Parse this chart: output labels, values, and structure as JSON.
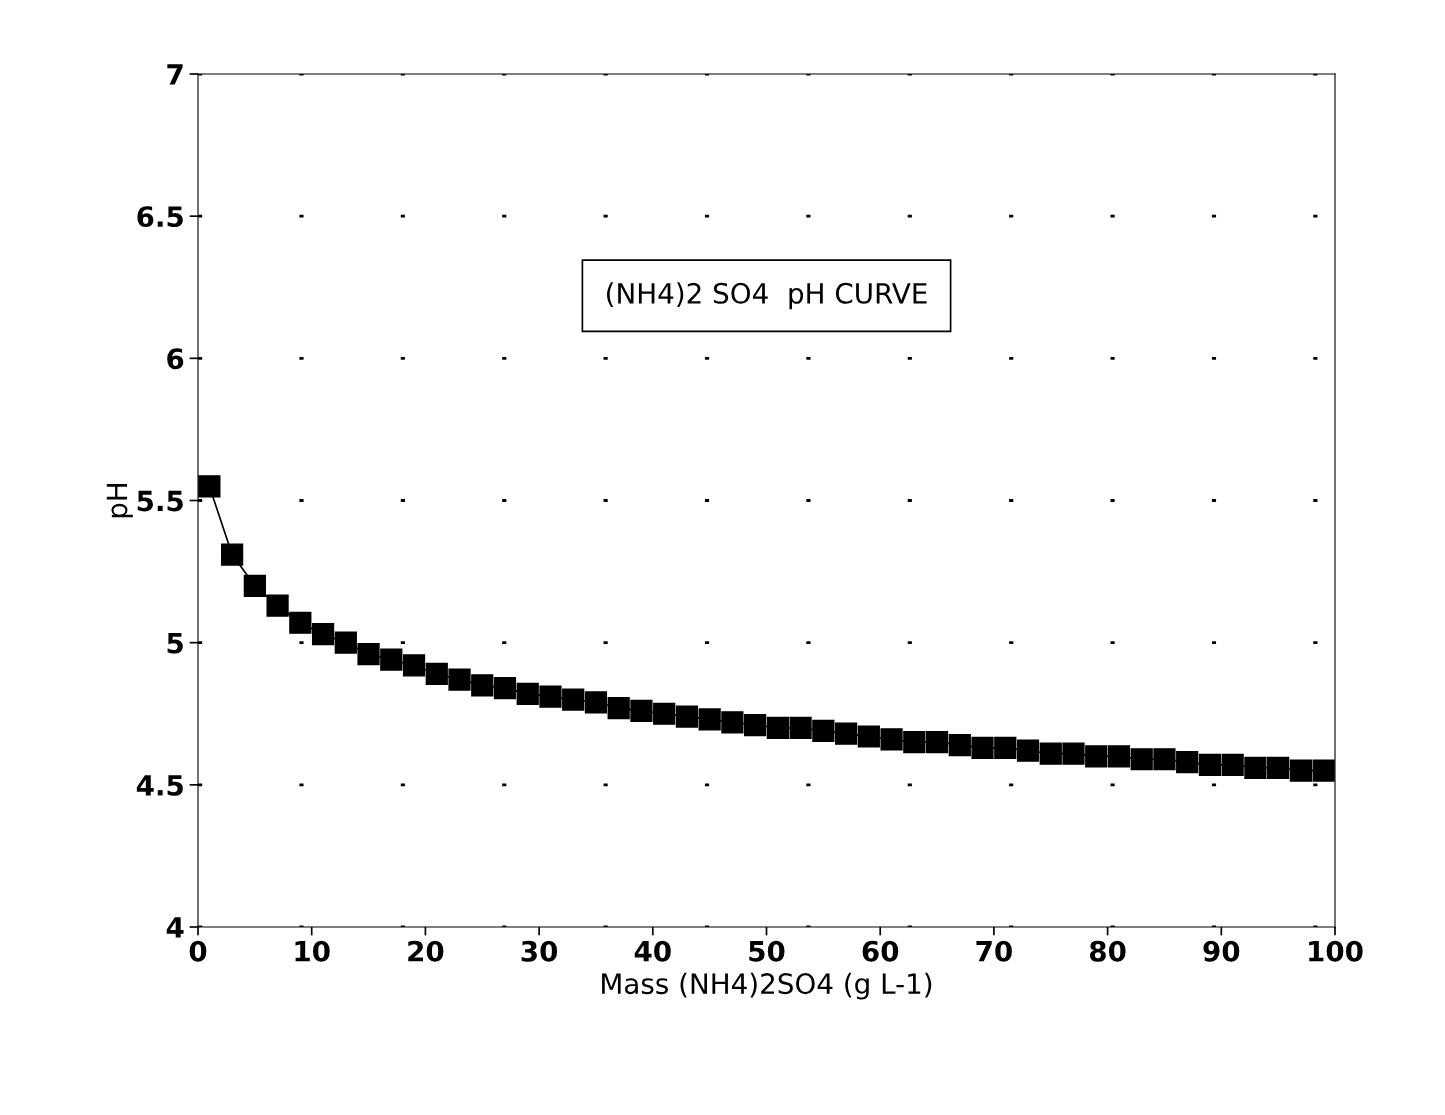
{
  "chart_data": {
    "type": "line",
    "title": "(NH4)2 SO4  pH CURVE",
    "xlabel": "Mass (NH4)2SO4 (g L-1)",
    "ylabel": "pH",
    "x": [
      1,
      3,
      5,
      7,
      9,
      11,
      13,
      15,
      17,
      19,
      21,
      23,
      25,
      27,
      29,
      31,
      33,
      35,
      37,
      39,
      41,
      43,
      45,
      47,
      49,
      51,
      53,
      55,
      57,
      59,
      61,
      63,
      65,
      67,
      69,
      71,
      73,
      75,
      77,
      79,
      81,
      83,
      85,
      87,
      89,
      91,
      93,
      95,
      97,
      99
    ],
    "series": [
      {
        "color": "#000000",
        "values": [
          5.55,
          5.31,
          5.2,
          5.13,
          5.07,
          5.03,
          5.0,
          4.96,
          4.94,
          4.92,
          4.89,
          4.87,
          4.85,
          4.84,
          4.82,
          4.81,
          4.8,
          4.79,
          4.77,
          4.76,
          4.75,
          4.74,
          4.73,
          4.72,
          4.71,
          4.7,
          4.7,
          4.69,
          4.68,
          4.67,
          4.66,
          4.65,
          4.65,
          4.64,
          4.63,
          4.63,
          4.62,
          4.61,
          4.61,
          4.6,
          4.6,
          4.59,
          4.59,
          4.58,
          4.57,
          4.57,
          4.56,
          4.56,
          4.55,
          4.55
        ]
      }
    ],
    "xlim": [
      0,
      100
    ],
    "xticks": [
      0,
      10,
      20,
      30,
      40,
      50,
      60,
      70,
      80,
      90,
      100
    ],
    "ylim": [
      4,
      7
    ],
    "yticks": [
      4,
      4.5,
      5,
      5.5,
      6,
      6.5,
      7
    ],
    "grid": "y",
    "marker": "square",
    "line_style": "solid"
  }
}
